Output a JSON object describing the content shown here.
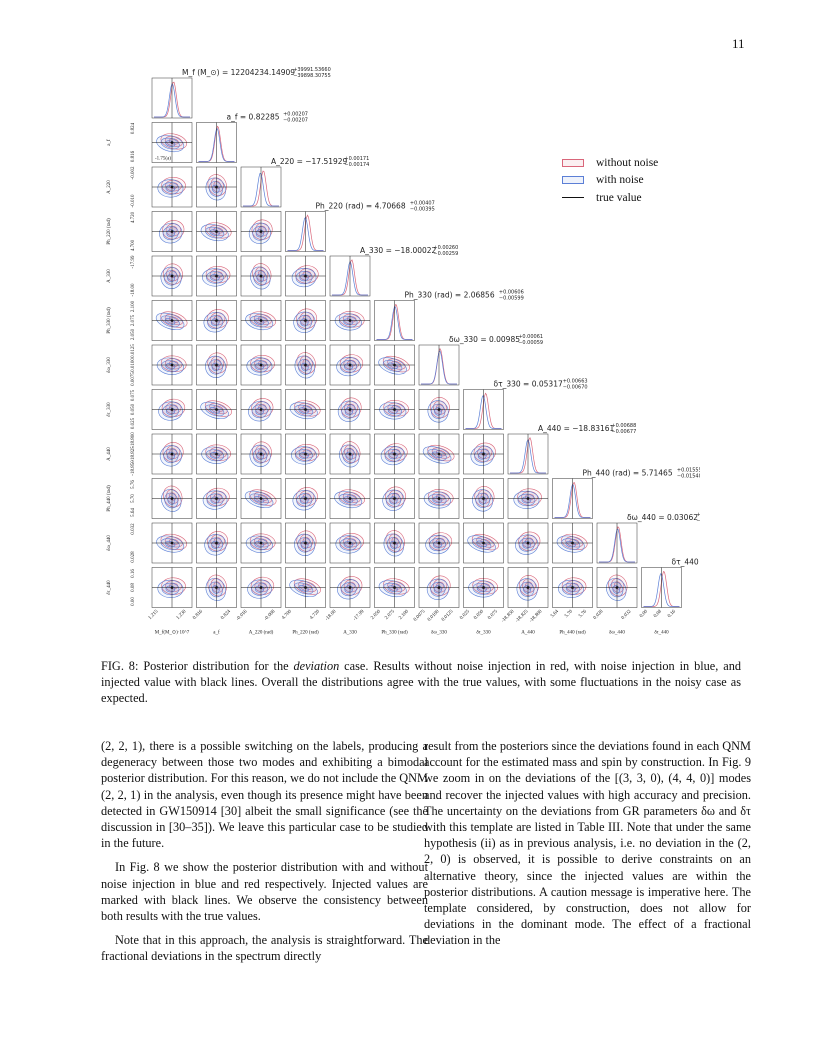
{
  "page_number": "11",
  "figure": {
    "params": [
      {
        "title": "M_f (M_⊙) = 12204234.14909",
        "sup": "+39991.53660",
        "sub": "−39898.30755",
        "ylabel": "",
        "xlabel": "M_f(M_⊙)·10^7",
        "xticks": [
          "1.215",
          "1.230"
        ],
        "yticks": []
      },
      {
        "title": "a_f = 0.82285",
        "sup": "+0.00207",
        "sub": "−0.00207",
        "ylabel": "a_f",
        "xlabel": "a_f",
        "xticks": [
          "0.816",
          "0.824"
        ],
        "yticks": [
          "0.824",
          "0.816"
        ]
      },
      {
        "title": "A_220 = −17.51929",
        "sup": "+0.00171",
        "sub": "−0.00174",
        "ylabel": "A_220",
        "xlabel": "A_220 (rad)",
        "xticks": [
          "-0.016",
          "-0.008"
        ],
        "yticks": [
          "-0.002",
          "-0.010"
        ]
      },
      {
        "title": "Ph_220 (rad) = 4.70668",
        "sup": "+0.00407",
        "sub": "−0.00395",
        "ylabel": "Ph_220 (rad)",
        "xlabel": "Ph_220 (rad)",
        "xticks": [
          "4.700",
          "4.720"
        ],
        "yticks": [
          "4.720",
          "4.700"
        ]
      },
      {
        "title": "A_330 = −18.00022",
        "sup": "+0.00260",
        "sub": "−0.00259",
        "ylabel": "A_330",
        "xlabel": "A_330",
        "xticks": [
          "-18.00",
          "-17.99"
        ],
        "yticks": [
          "-17.99",
          "-18.00"
        ]
      },
      {
        "title": "Ph_330 (rad) = 2.06856",
        "sup": "+0.00606",
        "sub": "−0.00599",
        "ylabel": "Ph_330 (rad)",
        "xlabel": "Ph_330 (rad)",
        "xticks": [
          "2.050",
          "2.075",
          "2.100"
        ],
        "yticks": [
          "2.100",
          "2.075",
          "2.050"
        ]
      },
      {
        "title": "δω_330 = 0.00985",
        "sup": "+0.00061",
        "sub": "−0.00059",
        "ylabel": "δω_330",
        "xlabel": "δω_330",
        "xticks": [
          "0.0075",
          "0.0100",
          "0.0125"
        ],
        "yticks": [
          "0.0125",
          "0.0100",
          "0.0075"
        ]
      },
      {
        "title": "δτ_330 = 0.05317",
        "sup": "+0.00663",
        "sub": "−0.00670",
        "ylabel": "δτ_330",
        "xlabel": "δτ_330",
        "xticks": [
          "0.025",
          "0.050",
          "0.075"
        ],
        "yticks": [
          "0.075",
          "0.050",
          "0.025"
        ]
      },
      {
        "title": "A_440 = −18.83161",
        "sup": "+0.00688",
        "sub": "−0.00677",
        "ylabel": "A_440",
        "xlabel": "A_440",
        "xticks": [
          "-18.850",
          "-18.825",
          "-18.800"
        ],
        "yticks": [
          "-18.800",
          "-18.825",
          "-18.850"
        ]
      },
      {
        "title": "Ph_440 (rad) = 5.71465",
        "sup": "+0.01555",
        "sub": "−0.01540",
        "ylabel": "Ph_440 (rad)",
        "xlabel": "Ph_440 (rad)",
        "xticks": [
          "5.64",
          "5.70",
          "5.76"
        ],
        "yticks": [
          "5.76",
          "5.70",
          "5.64"
        ]
      },
      {
        "title": "δω_440 = 0.03062",
        "sup": "+0.00111",
        "sub": "−0.00110",
        "ylabel": "δω_440",
        "xlabel": "δω_440",
        "xticks": [
          "0.028",
          "0.032"
        ],
        "yticks": [
          "0.032",
          "0.028"
        ]
      },
      {
        "title": "δτ_440 = 0.10293",
        "sup": "+0.02000",
        "sub": "−0.02035",
        "ylabel": "δτ_440",
        "xlabel": "δτ_440",
        "xticks": [
          "0.00",
          "0.08",
          "0.16"
        ],
        "yticks": [
          "0.16",
          "0.08",
          "0.00"
        ]
      }
    ],
    "stray_tick_label": "-1.75(a)",
    "legend": [
      {
        "label": "without noise",
        "color": "#d9667a",
        "style": "patch"
      },
      {
        "label": "with noise",
        "color": "#5b7fd6",
        "style": "patch"
      },
      {
        "label": "true value",
        "color": "#111111",
        "style": "line"
      }
    ]
  },
  "caption": {
    "label": "FIG. 8:",
    "text1": " Posterior distribution for the ",
    "emph": "deviation",
    "text2": " case. Results without noise injection in red, with noise injection in blue, and injected value with black lines. Overall the distributions agree with the true values, with some fluctuations in the noisy case as expected."
  },
  "body": {
    "left": [
      "(2, 2, 1), there is a possible switching on the labels, producing a degeneracy between those two modes and exhibiting a bimodal posterior distribution. For this reason, we do not include the QNM (2, 2, 1) in the analysis, even though its presence might have been detected in GW150914 [30] albeit the small significance (see the discussion in [30–35]). We leave this particular case to be studied in the future.",
      "In Fig. 8 we show the posterior distribution with and without noise injection in blue and red respectively. Injected values are marked with black lines. We observe the consistency between both results with the true values.",
      "Note that in this approach, the analysis is straightforward. The fractional deviations in the spectrum directly"
    ],
    "right": [
      "result from the posteriors since the deviations found in each QNM account for the estimated mass and spin by construction. In Fig. 9 we zoom in on the deviations of the [(3, 3, 0), (4, 4, 0)] modes and recover the injected values with high accuracy and precision. The uncertainty on the deviations from GR parameters δω and δτ with this template are listed in Table III. Note that under the same hypothesis (ii) as in previous analysis, i.e. no deviation in the (2, 2, 0) is observed, it is possible to derive constraints on an alternative theory, since the injected values are within the posterior distributions. A caution message is imperative here. The template considered, by construction, does not allow for deviations in the dominant mode. The effect of a fractional deviation in the"
    ]
  }
}
